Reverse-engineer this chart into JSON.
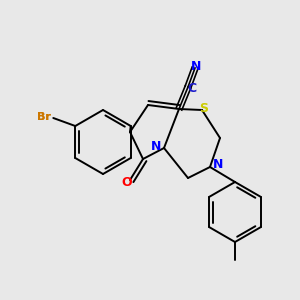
{
  "bg_color": "#e8e8e8",
  "bond_color": "#000000",
  "bond_width": 1.4,
  "fig_width": 3.0,
  "fig_height": 3.0,
  "dpi": 100,
  "colors": {
    "Br": "#cc7700",
    "N": "#0000ff",
    "C_label": "#0000cc",
    "S": "#cccc00",
    "O": "#ff0000"
  }
}
